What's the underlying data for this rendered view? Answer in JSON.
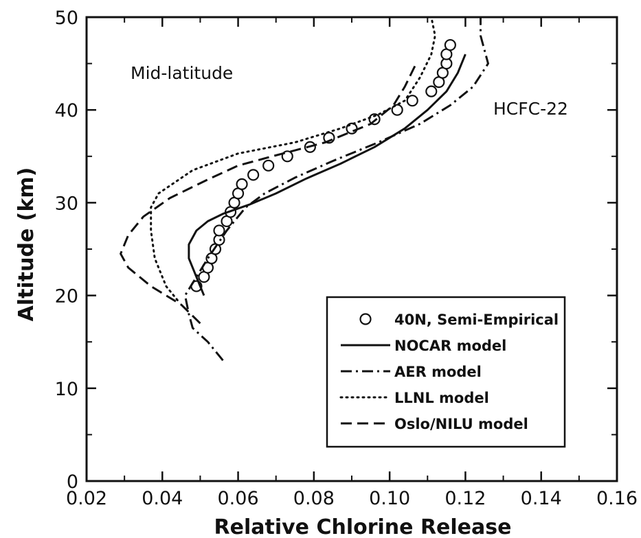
{
  "chart_data": {
    "type": "line",
    "xlabel": "Relative Chlorine Release",
    "ylabel": "Altitude (km)",
    "xlim": [
      0.02,
      0.16
    ],
    "ylim": [
      0,
      50
    ],
    "x_ticks": [
      "0.02",
      "0.04",
      "0.06",
      "0.08",
      "0.10",
      "0.12",
      "0.14",
      "0.16"
    ],
    "y_ticks": [
      "0",
      "10",
      "20",
      "30",
      "40",
      "50"
    ],
    "annotations": [
      "Mid-latitude",
      "HCFC-22"
    ],
    "legend_position": "lower-right",
    "series": [
      {
        "name": "40N, Semi-Empirical",
        "style": "circles",
        "points": [
          [
            0.049,
            21
          ],
          [
            0.051,
            22
          ],
          [
            0.052,
            23
          ],
          [
            0.053,
            24
          ],
          [
            0.054,
            25
          ],
          [
            0.055,
            26
          ],
          [
            0.055,
            27
          ],
          [
            0.057,
            28
          ],
          [
            0.058,
            29
          ],
          [
            0.059,
            30
          ],
          [
            0.06,
            31
          ],
          [
            0.061,
            32
          ],
          [
            0.064,
            33
          ],
          [
            0.068,
            34
          ],
          [
            0.073,
            35
          ],
          [
            0.079,
            36
          ],
          [
            0.084,
            37
          ],
          [
            0.09,
            38
          ],
          [
            0.096,
            39
          ],
          [
            0.102,
            40
          ],
          [
            0.106,
            41
          ],
          [
            0.111,
            42
          ],
          [
            0.113,
            43
          ],
          [
            0.114,
            44
          ],
          [
            0.115,
            45
          ],
          [
            0.115,
            46
          ],
          [
            0.116,
            47
          ]
        ]
      },
      {
        "name": "NOCAR model",
        "style": "solid",
        "points": [
          [
            0.051,
            20
          ],
          [
            0.049,
            22
          ],
          [
            0.047,
            24
          ],
          [
            0.047,
            25.5
          ],
          [
            0.049,
            27
          ],
          [
            0.052,
            28
          ],
          [
            0.056,
            28.8
          ],
          [
            0.063,
            29.8
          ],
          [
            0.07,
            31
          ],
          [
            0.078,
            32.6
          ],
          [
            0.087,
            34.2
          ],
          [
            0.096,
            36
          ],
          [
            0.104,
            38
          ],
          [
            0.11,
            40
          ],
          [
            0.115,
            42
          ],
          [
            0.118,
            44
          ],
          [
            0.12,
            46
          ]
        ]
      },
      {
        "name": "AER model",
        "style": "dashdot",
        "points": [
          [
            0.056,
            13
          ],
          [
            0.052,
            15
          ],
          [
            0.048,
            16.5
          ],
          [
            0.047,
            18
          ],
          [
            0.046,
            20
          ],
          [
            0.049,
            22
          ],
          [
            0.052,
            24
          ],
          [
            0.057,
            27
          ],
          [
            0.062,
            29.5
          ],
          [
            0.067,
            31
          ],
          [
            0.075,
            32.7
          ],
          [
            0.085,
            34.5
          ],
          [
            0.097,
            36.5
          ],
          [
            0.108,
            38.5
          ],
          [
            0.116,
            40.5
          ],
          [
            0.122,
            42.5
          ],
          [
            0.126,
            45
          ],
          [
            0.124,
            48
          ],
          [
            0.124,
            50
          ]
        ]
      },
      {
        "name": "LLNL model",
        "style": "dotted",
        "points": [
          [
            0.044,
            19.5
          ],
          [
            0.041,
            21
          ],
          [
            0.038,
            24
          ],
          [
            0.037,
            27
          ],
          [
            0.037,
            29.5
          ],
          [
            0.039,
            31
          ],
          [
            0.048,
            33.5
          ],
          [
            0.06,
            35.3
          ],
          [
            0.075,
            36.5
          ],
          [
            0.087,
            38
          ],
          [
            0.097,
            39.5
          ],
          [
            0.104,
            41
          ],
          [
            0.108,
            43.5
          ],
          [
            0.111,
            46
          ],
          [
            0.112,
            48
          ],
          [
            0.111,
            50
          ]
        ]
      },
      {
        "name": "Oslo/NILU model",
        "style": "dashed",
        "points": [
          [
            0.05,
            17
          ],
          [
            0.045,
            19
          ],
          [
            0.037,
            21
          ],
          [
            0.031,
            23
          ],
          [
            0.029,
            24.5
          ],
          [
            0.031,
            26.5
          ],
          [
            0.035,
            28.5
          ],
          [
            0.042,
            30.5
          ],
          [
            0.052,
            32.5
          ],
          [
            0.06,
            34
          ],
          [
            0.069,
            35
          ],
          [
            0.083,
            36.5
          ],
          [
            0.095,
            38.5
          ],
          [
            0.101,
            40.5
          ],
          [
            0.104,
            42.5
          ],
          [
            0.107,
            45
          ]
        ]
      }
    ]
  }
}
